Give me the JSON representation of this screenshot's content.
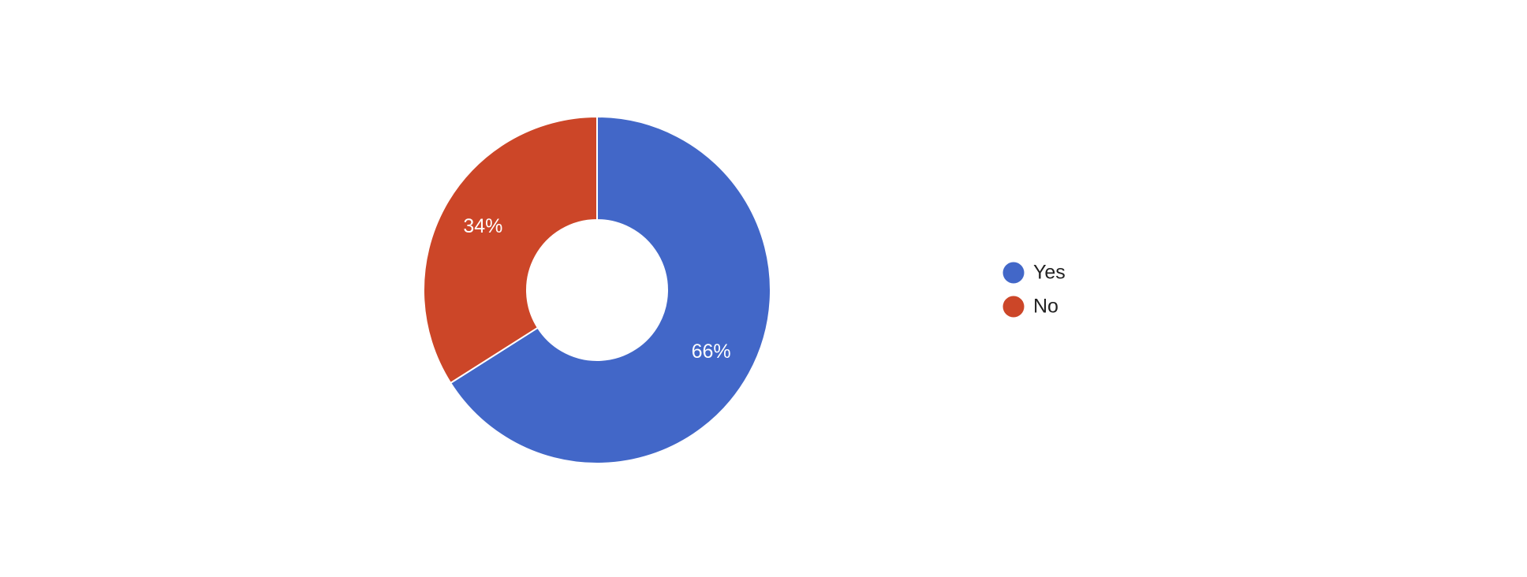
{
  "chart_data": {
    "type": "donut",
    "categories": [
      "Yes",
      "No"
    ],
    "values": [
      66,
      34
    ],
    "value_labels": [
      "66%",
      "34%"
    ],
    "colors": [
      "#4267c8",
      "#cc4628"
    ],
    "legend": "right"
  }
}
